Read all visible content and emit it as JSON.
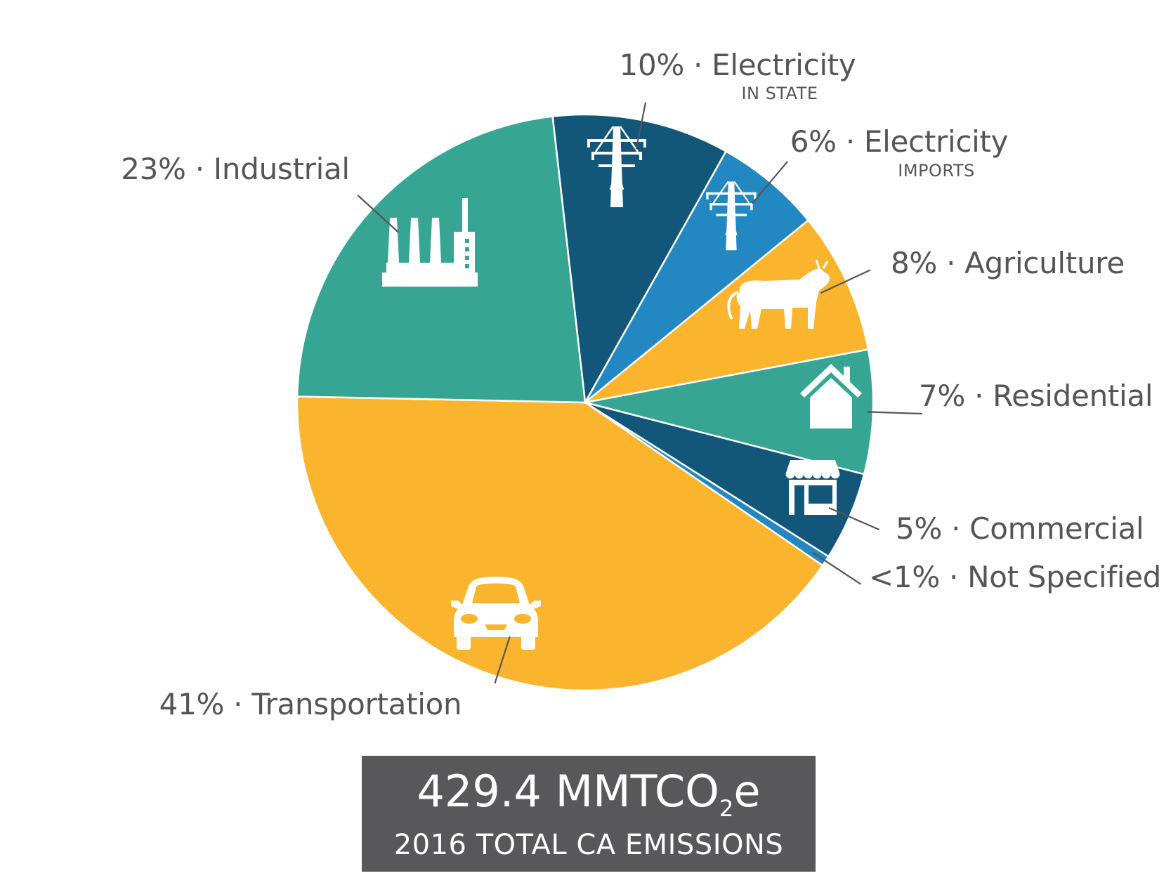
{
  "chart_data": {
    "type": "pie",
    "start_angle_deg": -96.5,
    "direction": "clockwise",
    "slices": [
      {
        "key": "electricity-in-state",
        "value": 10,
        "label": "10% · Electricity",
        "sublabel": "IN STATE",
        "color": "#12577a",
        "icon": "power-tower-icon"
      },
      {
        "key": "electricity-imports",
        "value": 6,
        "label": "6% · Electricity",
        "sublabel": "IMPORTS",
        "color": "#2388c2",
        "icon": "power-tower-icon"
      },
      {
        "key": "agriculture",
        "value": 8,
        "label": "8% · Agriculture",
        "sublabel": "",
        "color": "#fbb42d",
        "icon": "cow-icon"
      },
      {
        "key": "residential",
        "value": 7,
        "label": "7% · Residential",
        "sublabel": "",
        "color": "#37a593",
        "icon": "house-icon"
      },
      {
        "key": "commercial",
        "value": 5,
        "label": "5% · Commercial",
        "sublabel": "",
        "color": "#12577a",
        "icon": "storefront-icon"
      },
      {
        "key": "not-specified",
        "value": 0.6,
        "label": "<1% · Not Specified",
        "sublabel": "",
        "color": "#2388c2",
        "icon": ""
      },
      {
        "key": "transportation",
        "value": 41,
        "label": "41% · Transportation",
        "sublabel": "",
        "color": "#fbb42d",
        "icon": "car-icon"
      },
      {
        "key": "industrial",
        "value": 23,
        "label": "23% · Industrial",
        "sublabel": "",
        "color": "#37a593",
        "icon": "factory-icon"
      }
    ],
    "legend": "none"
  },
  "total": {
    "value": "429.4 MMTCO",
    "unit_subscript": "2",
    "unit_suffix": "e",
    "caption": "2016 TOTAL CA EMISSIONS"
  }
}
